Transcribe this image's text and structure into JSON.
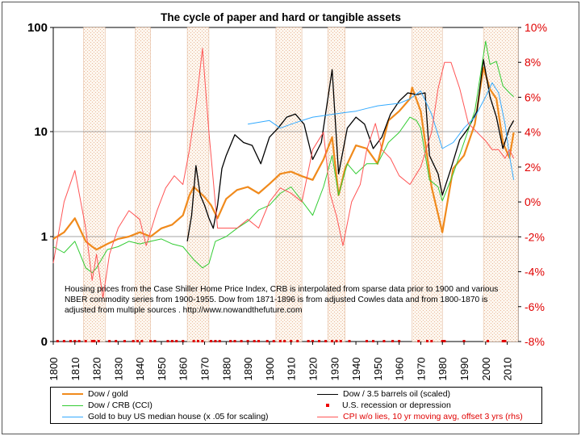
{
  "chart_data": {
    "type": "line",
    "title": "The cycle of paper and hard or tangible assets",
    "left_axis": {
      "scale": "log",
      "ticks": [
        "100",
        "10",
        "1",
        "0"
      ]
    },
    "right_axis": {
      "ticks": [
        "10%",
        "8%",
        "6%",
        "4%",
        "2%",
        "0%",
        "-2%",
        "-4%",
        "-6%",
        "-8%"
      ],
      "range": [
        -8,
        10
      ],
      "color": "#e00000"
    },
    "x_axis": {
      "range": [
        1800,
        2015
      ],
      "ticks": [
        "1800",
        "1810",
        "1820",
        "1830",
        "1840",
        "1850",
        "1860",
        "1870",
        "1880",
        "1890",
        "1900",
        "1910",
        "1920",
        "1930",
        "1940",
        "1950",
        "1960",
        "1970",
        "1980",
        "1990",
        "2000",
        "2010"
      ]
    },
    "grid": true,
    "shaded_periods": [
      [
        1814,
        1824
      ],
      [
        1838,
        1845
      ],
      [
        1862,
        1872
      ],
      [
        1903,
        1915
      ],
      [
        1927,
        1935
      ],
      [
        1966,
        1980
      ],
      [
        1999,
        2016
      ]
    ],
    "recession_years": [
      1802,
      1805,
      1808,
      1810,
      1812,
      1815,
      1818,
      1819,
      1821,
      1826,
      1829,
      1833,
      1837,
      1839,
      1841,
      1845,
      1847,
      1853,
      1855,
      1857,
      1860,
      1865,
      1867,
      1869,
      1873,
      1875,
      1877,
      1882,
      1884,
      1887,
      1890,
      1893,
      1895,
      1899,
      1902,
      1905,
      1907,
      1910,
      1913,
      1918,
      1920,
      1923,
      1926,
      1929,
      1931,
      1933,
      1937,
      1945,
      1948,
      1953,
      1957,
      1960,
      1969,
      1973,
      1975,
      1980,
      1981,
      1990,
      2001,
      2008,
      2009
    ],
    "series": [
      {
        "name": "Dow / gold",
        "color": "#f08a1c",
        "axis": "left",
        "x": [
          1800,
          1805,
          1810,
          1815,
          1818,
          1820,
          1825,
          1830,
          1835,
          1840,
          1845,
          1850,
          1855,
          1860,
          1863,
          1865,
          1870,
          1873,
          1876,
          1880,
          1885,
          1890,
          1895,
          1900,
          1905,
          1910,
          1915,
          1920,
          1925,
          1929,
          1932,
          1935,
          1940,
          1945,
          1950,
          1955,
          1960,
          1965,
          1966,
          1970,
          1975,
          1980,
          1985,
          1990,
          1995,
          1999,
          2002,
          2005,
          2008,
          2011,
          2013
        ],
        "y": [
          0.95,
          1.1,
          1.5,
          0.9,
          0.8,
          0.75,
          0.85,
          0.95,
          1.0,
          1.1,
          1.0,
          1.2,
          1.3,
          1.6,
          2.5,
          3.0,
          2.4,
          2.0,
          1.5,
          2.3,
          2.8,
          3.0,
          2.6,
          3.2,
          4.0,
          4.2,
          3.8,
          3.5,
          5.5,
          9.0,
          2.5,
          4.5,
          7.5,
          7.0,
          5.0,
          13.0,
          16.0,
          21.0,
          27.0,
          16.0,
          3.0,
          1.1,
          4.5,
          6.0,
          12.0,
          42.0,
          26.0,
          21.0,
          8.0,
          5.7,
          10.0
        ]
      },
      {
        "name": "Dow / 3.5 barrels oil (scaled)",
        "color": "#000000",
        "axis": "left",
        "x": [
          1862,
          1864,
          1866,
          1868,
          1870,
          1872,
          1874,
          1876,
          1878,
          1880,
          1884,
          1888,
          1892,
          1896,
          1900,
          1904,
          1908,
          1912,
          1916,
          1920,
          1924,
          1929,
          1932,
          1936,
          1940,
          1944,
          1948,
          1952,
          1956,
          1960,
          1964,
          1968,
          1972,
          1974,
          1978,
          1980,
          1984,
          1988,
          1992,
          1996,
          1999,
          2002,
          2005,
          2008,
          2011,
          2013
        ],
        "y": [
          0.9,
          1.6,
          4.8,
          2.5,
          2.0,
          1.5,
          1.2,
          2.0,
          4.5,
          6.0,
          9.5,
          8.0,
          7.5,
          5.0,
          9.0,
          11.0,
          14.0,
          15.0,
          12.0,
          5.5,
          8.0,
          40.0,
          4.0,
          11.0,
          14.0,
          12.0,
          7.0,
          9.0,
          15.0,
          20.0,
          24.0,
          23.0,
          24.0,
          6.0,
          4.0,
          2.5,
          4.5,
          8.5,
          11.0,
          16.0,
          50.0,
          22.0,
          14.0,
          7.0,
          11.0,
          13.0
        ]
      },
      {
        "name": "Dow / CRB (CCI)",
        "color": "#33cc33",
        "axis": "left",
        "x": [
          1800,
          1805,
          1810,
          1815,
          1818,
          1820,
          1825,
          1830,
          1835,
          1840,
          1845,
          1850,
          1855,
          1860,
          1865,
          1869,
          1872,
          1875,
          1880,
          1885,
          1890,
          1895,
          1900,
          1905,
          1910,
          1915,
          1920,
          1925,
          1929,
          1932,
          1936,
          1940,
          1945,
          1950,
          1955,
          1960,
          1965,
          1968,
          1970,
          1974,
          1978,
          1980,
          1985,
          1990,
          1995,
          2000,
          2002,
          2005,
          2008,
          2011,
          2013
        ],
        "y": [
          0.8,
          0.7,
          0.9,
          0.5,
          0.45,
          0.5,
          0.75,
          0.8,
          0.9,
          0.85,
          0.9,
          0.95,
          0.85,
          0.8,
          0.6,
          0.5,
          0.55,
          0.9,
          1.0,
          1.2,
          1.4,
          1.8,
          2.0,
          2.6,
          3.0,
          2.2,
          1.6,
          3.0,
          6.0,
          2.5,
          5.0,
          4.0,
          5.0,
          5.0,
          8.0,
          10.0,
          14.0,
          13.0,
          11.0,
          3.5,
          3.0,
          2.2,
          4.0,
          8.0,
          16.0,
          75.0,
          45.0,
          48.0,
          28.0,
          24.0,
          22.0
        ]
      },
      {
        "name": "Gold to buy US median house (x .05 for scaling)",
        "color": "#33aaff",
        "axis": "left",
        "x": [
          1890,
          1895,
          1900,
          1905,
          1910,
          1915,
          1920,
          1925,
          1930,
          1935,
          1940,
          1945,
          1950,
          1955,
          1960,
          1965,
          1970,
          1975,
          1980,
          1985,
          1990,
          1995,
          2000,
          2003,
          2006,
          2009,
          2011,
          2013
        ],
        "y": [
          12.0,
          12.5,
          13.0,
          11.0,
          12.0,
          13.0,
          14.0,
          14.5,
          15.0,
          15.5,
          16.0,
          17.0,
          18.0,
          18.5,
          19.0,
          21.0,
          25.0,
          15.0,
          7.0,
          8.0,
          11.0,
          14.0,
          22.0,
          30.0,
          24.0,
          12.0,
          6.0,
          3.5
        ]
      },
      {
        "name": "CPI w/o lies, 10 yr moving avg, offset 3 yrs (rhs)",
        "color": "#ff5555",
        "axis": "right",
        "x": [
          1800,
          1805,
          1810,
          1815,
          1818,
          1820,
          1823,
          1826,
          1830,
          1835,
          1840,
          1843,
          1848,
          1852,
          1856,
          1860,
          1863,
          1866,
          1869,
          1872,
          1876,
          1880,
          1885,
          1890,
          1895,
          1900,
          1905,
          1910,
          1915,
          1920,
          1925,
          1928,
          1931,
          1934,
          1938,
          1942,
          1945,
          1949,
          1952,
          1956,
          1960,
          1965,
          1970,
          1975,
          1978,
          1981,
          1984,
          1988,
          1992,
          1996,
          2000,
          2003,
          2006,
          2009,
          2011,
          2013
        ],
        "y": [
          -3.5,
          0.0,
          1.8,
          -1.5,
          -4.5,
          -3.0,
          -5.5,
          -3.0,
          -1.5,
          -0.5,
          -1.0,
          -2.5,
          -0.5,
          0.8,
          1.5,
          1.0,
          3.0,
          5.5,
          8.8,
          4.0,
          -1.5,
          -1.5,
          -1.5,
          -1.0,
          -1.5,
          0.0,
          0.8,
          0.5,
          0.0,
          3.0,
          4.0,
          0.5,
          -0.8,
          -2.5,
          0.0,
          1.0,
          3.0,
          4.5,
          3.0,
          2.5,
          1.5,
          1.0,
          2.0,
          4.0,
          6.5,
          8.0,
          8.0,
          6.5,
          4.5,
          4.0,
          3.5,
          3.0,
          3.0,
          2.5,
          3.0,
          2.5
        ]
      }
    ],
    "legend": [
      {
        "label": "Dow / gold",
        "color": "#f08a1c",
        "kind": "line"
      },
      {
        "label": "Dow / 3.5 barrels oil (scaled)",
        "color": "#000000",
        "kind": "line"
      },
      {
        "label": "Dow / CRB (CCI)",
        "color": "#33cc33",
        "kind": "line"
      },
      {
        "label": "U.S. recession or depression",
        "color": "#e00000",
        "kind": "square"
      },
      {
        "label": "Gold to buy US median house (x .05 for scaling)",
        "color": "#33aaff",
        "kind": "line"
      },
      {
        "label": "CPI w/o lies, 10 yr moving avg, offset 3 yrs (rhs)",
        "color": "#ff5555",
        "kind": "line"
      }
    ],
    "annotation": "Housing prices from the Case Shiller Home Price Index, CRB is interpolated from sparse data prior to 1900 and various NBER commodity series from 1900-1955. Dow from 1871-1896 is from adjusted Cowles data and from 1800-1870 is adjusted from multiple sources . http://www.nowandthefuture.com"
  }
}
